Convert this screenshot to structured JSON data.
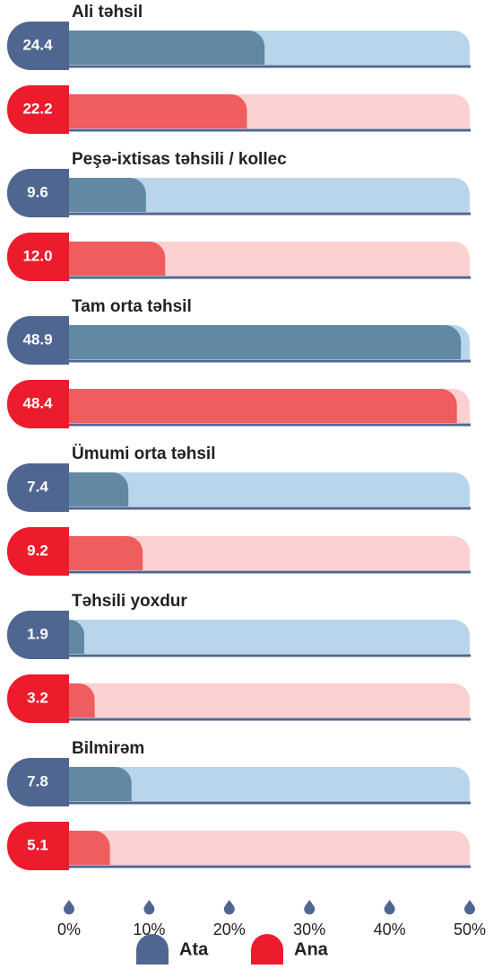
{
  "chart_data": {
    "type": "bar",
    "orientation": "horizontal",
    "categories": [
      "Ali təhsil",
      "Peşə-ixtisas təhsili / kollec",
      "Tam orta təhsil",
      "Ümumi orta təhsil",
      "Təhsili yoxdur",
      "Bilmirəm"
    ],
    "series": [
      {
        "name": "Ata",
        "color": "#4f6690",
        "bar_color": "#6189a3",
        "track_color": "#b8d5eb",
        "values": [
          24.4,
          9.6,
          48.9,
          7.4,
          1.9,
          7.8
        ],
        "value_labels": [
          "24.4",
          "9.6",
          "48.9",
          "7.4",
          "1.9",
          "7.8"
        ]
      },
      {
        "name": "Ana",
        "color": "#ec1c2c",
        "bar_color": "#ef5d5f",
        "track_color": "#fbd0d1",
        "values": [
          22.2,
          12.0,
          48.4,
          9.2,
          3.2,
          5.1
        ],
        "value_labels": [
          "22.2",
          "12.0",
          "48.4",
          "9.2",
          "3.2",
          "5.1"
        ]
      }
    ],
    "xlim": [
      0,
      50
    ],
    "xticks": [
      {
        "value": 0,
        "label": "0%"
      },
      {
        "value": 10,
        "label": "10%"
      },
      {
        "value": 20,
        "label": "20%"
      },
      {
        "value": 30,
        "label": "30%"
      },
      {
        "value": 40,
        "label": "40%"
      },
      {
        "value": 50,
        "label": "50%"
      }
    ],
    "axis_color": "#4f6690",
    "legend": "bottom"
  }
}
